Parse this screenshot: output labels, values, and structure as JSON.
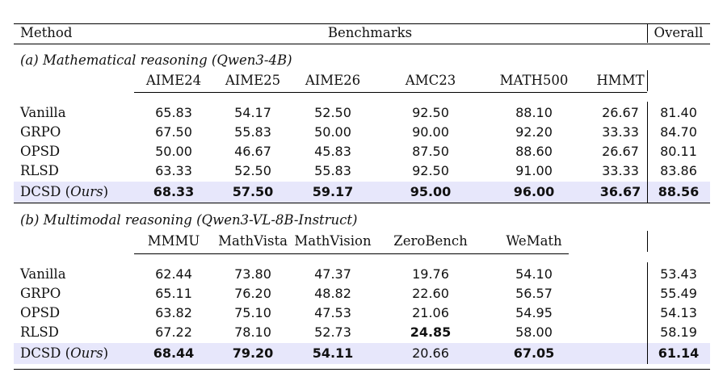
{
  "header": {
    "method": "Method",
    "benchmarks": "Benchmarks",
    "overall": "Overall"
  },
  "ours_label": "Ours",
  "sections": [
    {
      "title": "(a) Mathematical reasoning (Qwen3-4B)",
      "columns": [
        "AIME24",
        "AIME25",
        "AIME26",
        "AMC23",
        "MATH500",
        "HMMT"
      ],
      "rows": [
        {
          "method": "Vanilla",
          "values": [
            "65.83",
            "54.17",
            "52.50",
            "92.50",
            "88.10",
            "26.67"
          ],
          "overall": "81.40"
        },
        {
          "method": "GRPO",
          "values": [
            "67.50",
            "55.83",
            "50.00",
            "90.00",
            "92.20",
            "33.33"
          ],
          "overall": "84.70"
        },
        {
          "method": "OPSD",
          "values": [
            "50.00",
            "46.67",
            "45.83",
            "87.50",
            "88.60",
            "26.67"
          ],
          "overall": "80.11"
        },
        {
          "method": "RLSD",
          "values": [
            "63.33",
            "52.50",
            "55.83",
            "92.50",
            "91.00",
            "33.33"
          ],
          "overall": "83.86"
        },
        {
          "method": "DCSD",
          "values": [
            "68.33",
            "57.50",
            "59.17",
            "95.00",
            "96.00",
            "36.67"
          ],
          "overall": "88.56"
        }
      ]
    },
    {
      "title": "(b) Multimodal reasoning (Qwen3-VL-8B-Instruct)",
      "columns": [
        "MMMU",
        "MathVista",
        "MathVision",
        "ZeroBench",
        "WeMath"
      ],
      "rows": [
        {
          "method": "Vanilla",
          "values": [
            "62.44",
            "73.80",
            "47.37",
            "19.76",
            "54.10"
          ],
          "overall": "53.43"
        },
        {
          "method": "GRPO",
          "values": [
            "65.11",
            "76.20",
            "48.82",
            "22.60",
            "56.57"
          ],
          "overall": "55.49"
        },
        {
          "method": "OPSD",
          "values": [
            "63.82",
            "75.10",
            "47.53",
            "21.06",
            "54.95"
          ],
          "overall": "54.13"
        },
        {
          "method": "RLSD",
          "values": [
            "67.22",
            "78.10",
            "52.73",
            "24.85",
            "58.00"
          ],
          "overall": "58.19"
        },
        {
          "method": "DCSD",
          "values": [
            "68.44",
            "79.20",
            "54.11",
            "20.66",
            "67.05"
          ],
          "overall": "61.14"
        }
      ]
    }
  ]
}
